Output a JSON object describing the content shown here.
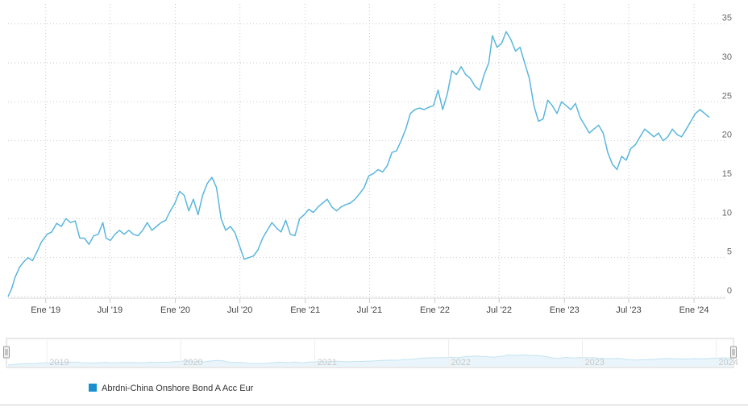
{
  "colors": {
    "series": "#5bb6dc",
    "legend_marker": "#1a8fd0",
    "grid": "#c9c9c9",
    "navigator_line": "#c4e3f1",
    "navigator_border": "#d3d3d3"
  },
  "chart_data": {
    "type": "line",
    "y_axis_position": "right",
    "ylim": [
      0,
      36
    ],
    "y_ticks": [
      0,
      5,
      10,
      15,
      20,
      25,
      30,
      35
    ],
    "x_tick_labels": [
      "Ene '19",
      "Jul '19",
      "Ene '20",
      "Jul '20",
      "Ene '21",
      "Jul '21",
      "Ene '22",
      "Jul '22",
      "Ene '23",
      "Jul '23",
      "Ene '24"
    ],
    "x_tick_dates": [
      "2019-01-01",
      "2019-07-01",
      "2020-01-01",
      "2020-07-01",
      "2021-01-01",
      "2021-07-01",
      "2022-01-01",
      "2022-07-01",
      "2023-01-01",
      "2023-07-01",
      "2024-01-01"
    ],
    "grid": true,
    "legend_position": "bottom-left",
    "navigator_year_labels": [
      "2019",
      "2020",
      "2021",
      "2022",
      "2023",
      "2024"
    ],
    "series": [
      {
        "name": "Abrdni-China Onshore Bond A Acc Eur",
        "points": [
          [
            "2018-09-17",
            0.0
          ],
          [
            "2018-09-27",
            1.0
          ],
          [
            "2018-10-07",
            2.5
          ],
          [
            "2018-10-20",
            3.8
          ],
          [
            "2018-11-01",
            4.5
          ],
          [
            "2018-11-12",
            5.0
          ],
          [
            "2018-11-25",
            4.6
          ],
          [
            "2018-12-08",
            5.8
          ],
          [
            "2018-12-20",
            7.0
          ],
          [
            "2019-01-05",
            8.0
          ],
          [
            "2019-01-18",
            8.3
          ],
          [
            "2019-02-01",
            9.4
          ],
          [
            "2019-02-14",
            9.0
          ],
          [
            "2019-02-27",
            10.0
          ],
          [
            "2019-03-12",
            9.5
          ],
          [
            "2019-03-25",
            9.7
          ],
          [
            "2019-04-07",
            7.5
          ],
          [
            "2019-04-20",
            7.5
          ],
          [
            "2019-05-03",
            6.7
          ],
          [
            "2019-05-16",
            7.8
          ],
          [
            "2019-05-29",
            8.0
          ],
          [
            "2019-06-11",
            9.5
          ],
          [
            "2019-06-20",
            7.5
          ],
          [
            "2019-07-02",
            7.2
          ],
          [
            "2019-07-15",
            8.0
          ],
          [
            "2019-07-28",
            8.5
          ],
          [
            "2019-08-10",
            8.0
          ],
          [
            "2019-08-23",
            8.5
          ],
          [
            "2019-09-05",
            8.0
          ],
          [
            "2019-09-18",
            7.8
          ],
          [
            "2019-10-01",
            8.5
          ],
          [
            "2019-10-14",
            9.5
          ],
          [
            "2019-10-27",
            8.5
          ],
          [
            "2019-11-09",
            9.0
          ],
          [
            "2019-11-22",
            9.5
          ],
          [
            "2019-12-05",
            9.8
          ],
          [
            "2019-12-18",
            11.0
          ],
          [
            "2019-12-31",
            12.0
          ],
          [
            "2020-01-13",
            13.5
          ],
          [
            "2020-01-26",
            13.0
          ],
          [
            "2020-02-08",
            11.0
          ],
          [
            "2020-02-21",
            12.5
          ],
          [
            "2020-03-05",
            10.5
          ],
          [
            "2020-03-18",
            13.0
          ],
          [
            "2020-03-31",
            14.5
          ],
          [
            "2020-04-13",
            15.3
          ],
          [
            "2020-04-26",
            14.0
          ],
          [
            "2020-05-09",
            10.0
          ],
          [
            "2020-05-22",
            8.5
          ],
          [
            "2020-06-04",
            9.0
          ],
          [
            "2020-06-17",
            8.2
          ],
          [
            "2020-06-30",
            6.5
          ],
          [
            "2020-07-13",
            4.8
          ],
          [
            "2020-07-26",
            5.0
          ],
          [
            "2020-08-08",
            5.2
          ],
          [
            "2020-08-21",
            6.0
          ],
          [
            "2020-09-03",
            7.5
          ],
          [
            "2020-09-16",
            8.5
          ],
          [
            "2020-09-29",
            9.5
          ],
          [
            "2020-10-12",
            8.8
          ],
          [
            "2020-10-25",
            8.3
          ],
          [
            "2020-11-07",
            9.8
          ],
          [
            "2020-11-20",
            8.0
          ],
          [
            "2020-12-03",
            7.8
          ],
          [
            "2020-12-16",
            10.0
          ],
          [
            "2020-12-29",
            10.5
          ],
          [
            "2021-01-11",
            11.2
          ],
          [
            "2021-01-24",
            10.8
          ],
          [
            "2021-02-06",
            11.5
          ],
          [
            "2021-02-19",
            12.0
          ],
          [
            "2021-03-04",
            12.5
          ],
          [
            "2021-03-17",
            11.5
          ],
          [
            "2021-03-30",
            11.0
          ],
          [
            "2021-04-12",
            11.5
          ],
          [
            "2021-04-25",
            11.8
          ],
          [
            "2021-05-08",
            12.0
          ],
          [
            "2021-05-21",
            12.5
          ],
          [
            "2021-06-03",
            13.2
          ],
          [
            "2021-06-16",
            14.0
          ],
          [
            "2021-06-29",
            15.5
          ],
          [
            "2021-07-12",
            15.8
          ],
          [
            "2021-07-25",
            16.3
          ],
          [
            "2021-08-07",
            16.0
          ],
          [
            "2021-08-20",
            16.8
          ],
          [
            "2021-09-02",
            18.5
          ],
          [
            "2021-09-15",
            18.7
          ],
          [
            "2021-09-28",
            20.0
          ],
          [
            "2021-10-11",
            21.5
          ],
          [
            "2021-10-24",
            23.5
          ],
          [
            "2021-11-06",
            24.0
          ],
          [
            "2021-11-19",
            24.2
          ],
          [
            "2021-12-02",
            24.0
          ],
          [
            "2021-12-15",
            24.3
          ],
          [
            "2021-12-28",
            24.5
          ],
          [
            "2022-01-10",
            26.5
          ],
          [
            "2022-01-23",
            24.0
          ],
          [
            "2022-02-05",
            26.0
          ],
          [
            "2022-02-18",
            29.0
          ],
          [
            "2022-03-03",
            28.5
          ],
          [
            "2022-03-16",
            29.5
          ],
          [
            "2022-03-29",
            28.5
          ],
          [
            "2022-04-11",
            28.0
          ],
          [
            "2022-04-24",
            27.0
          ],
          [
            "2022-05-07",
            26.5
          ],
          [
            "2022-05-20",
            28.5
          ],
          [
            "2022-06-02",
            30.0
          ],
          [
            "2022-06-12",
            33.5
          ],
          [
            "2022-06-25",
            32.0
          ],
          [
            "2022-07-08",
            32.5
          ],
          [
            "2022-07-21",
            34.0
          ],
          [
            "2022-08-03",
            33.0
          ],
          [
            "2022-08-16",
            31.5
          ],
          [
            "2022-08-29",
            32.0
          ],
          [
            "2022-09-11",
            30.0
          ],
          [
            "2022-09-24",
            28.0
          ],
          [
            "2022-10-07",
            24.5
          ],
          [
            "2022-10-20",
            22.5
          ],
          [
            "2022-11-02",
            22.8
          ],
          [
            "2022-11-15",
            25.2
          ],
          [
            "2022-11-28",
            24.5
          ],
          [
            "2022-12-11",
            23.5
          ],
          [
            "2022-12-24",
            25.0
          ],
          [
            "2023-01-06",
            24.5
          ],
          [
            "2023-01-19",
            24.0
          ],
          [
            "2023-02-01",
            24.8
          ],
          [
            "2023-02-14",
            23.0
          ],
          [
            "2023-02-27",
            22.0
          ],
          [
            "2023-03-12",
            21.0
          ],
          [
            "2023-03-25",
            21.5
          ],
          [
            "2023-04-07",
            22.0
          ],
          [
            "2023-04-20",
            21.0
          ],
          [
            "2023-05-03",
            18.5
          ],
          [
            "2023-05-16",
            17.0
          ],
          [
            "2023-05-29",
            16.3
          ],
          [
            "2023-06-11",
            18.0
          ],
          [
            "2023-06-24",
            17.5
          ],
          [
            "2023-07-07",
            19.0
          ],
          [
            "2023-07-20",
            19.5
          ],
          [
            "2023-08-02",
            20.5
          ],
          [
            "2023-08-15",
            21.5
          ],
          [
            "2023-08-28",
            21.0
          ],
          [
            "2023-09-10",
            20.5
          ],
          [
            "2023-09-23",
            21.0
          ],
          [
            "2023-10-06",
            20.0
          ],
          [
            "2023-10-19",
            20.5
          ],
          [
            "2023-11-01",
            21.5
          ],
          [
            "2023-11-14",
            20.8
          ],
          [
            "2023-11-27",
            20.5
          ],
          [
            "2023-12-10",
            21.5
          ],
          [
            "2023-12-23",
            22.5
          ],
          [
            "2024-01-05",
            23.5
          ],
          [
            "2024-01-18",
            24.0
          ],
          [
            "2024-01-31",
            23.5
          ],
          [
            "2024-02-13",
            23.0
          ]
        ]
      }
    ]
  }
}
